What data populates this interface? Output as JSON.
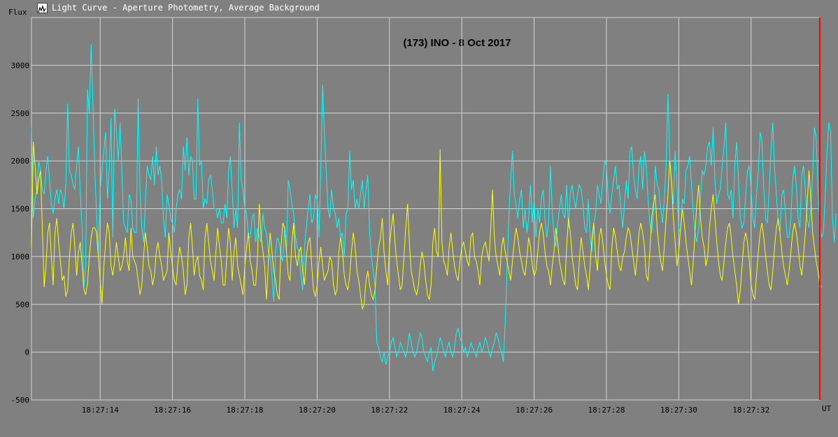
{
  "window": {
    "title": "Light Curve - Aperture Photometry, Average Background",
    "icon": "light-curve-app-icon"
  },
  "chart_data": {
    "type": "line",
    "title": "(173) INO - 8 Oct 2017",
    "ylabel": "Flux",
    "xlabel": "UT",
    "ylim": [
      -500,
      3500
    ],
    "yticks": [
      -500,
      0,
      500,
      1000,
      1500,
      2000,
      2500,
      3000
    ],
    "xlim": [
      "18:27:12.1",
      "18:27:33.9"
    ],
    "xticks": [
      "18:27:14",
      "18:27:16",
      "18:27:18",
      "18:27:20",
      "18:27:22",
      "18:27:24",
      "18:27:26",
      "18:27:28",
      "18:27:30",
      "18:27:32"
    ],
    "grid": true,
    "series": [
      {
        "color": "#00ffff",
        "x_start": "18:27:12.10",
        "x_step_s": 0.05,
        "values": [
          2350,
          1400,
          1600,
          1700,
          2000,
          1900,
          1700,
          1650,
          1900,
          2050,
          1800,
          1550,
          1450,
          1600,
          1700,
          1550,
          1700,
          1650,
          1500,
          1750,
          2600,
          1900,
          1850,
          1750,
          1700,
          1950,
          2150,
          1650,
          1300,
          680,
          900,
          2750,
          2500,
          3220,
          2600,
          1900,
          1450,
          1000,
          1700,
          1900,
          2100,
          2300,
          1600,
          1900,
          2450,
          1200,
          2550,
          2300,
          2000,
          2400,
          1900,
          1350,
          1300,
          1250,
          1650,
          1600,
          1300,
          1250,
          1250,
          2650,
          1700,
          1300,
          1150,
          1550,
          1950,
          1850,
          1800,
          2050,
          1750,
          2150,
          1850,
          1950,
          1800,
          1400,
          1200,
          1650,
          1550,
          1400,
          1350,
          1250,
          1500,
          1650,
          1700,
          1600,
          2150,
          1900,
          2250,
          1850,
          2050,
          2000,
          1600,
          1600,
          2650,
          1950,
          2000,
          1500,
          1600,
          1550,
          1800,
          1850,
          1700,
          1500,
          1500,
          1400,
          1500,
          1350,
          1350,
          1550,
          1400,
          1900,
          2050,
          1700,
          1300,
          1500,
          1300,
          2400,
          1800,
          1700,
          1500,
          1450,
          1200,
          1200,
          1400,
          1450,
          1150,
          1300,
          1200,
          1150,
          1450,
          1300,
          1250,
          1050,
          1000,
          800,
          530,
          1050,
          1200,
          1150,
          1000,
          950,
          1300,
          1050,
          1800,
          1700,
          1550,
          1450,
          1200,
          1100,
          1050,
          800,
          650,
          1100,
          1300,
          1500,
          1650,
          1350,
          1400,
          1650,
          1600,
          1200,
          1900,
          2800,
          2300,
          1900,
          1500,
          1400,
          1700,
          1500,
          1450,
          1300,
          1400,
          1200,
          1250,
          1000,
          1450,
          1500,
          2100,
          1700,
          1800,
          1500,
          1600,
          1500,
          1650,
          1800,
          1500,
          1700,
          1850,
          1250,
          1000,
          850,
          700,
          100,
          50,
          -50,
          -100,
          0,
          -130,
          -50,
          0,
          100,
          150,
          50,
          -50,
          0,
          100,
          50,
          0,
          -50,
          50,
          200,
          100,
          0,
          -50,
          0,
          100,
          200,
          150,
          0,
          -50,
          -100,
          0,
          50,
          -200,
          -100,
          -50,
          50,
          150,
          100,
          0,
          -50,
          50,
          100,
          0,
          -50,
          50,
          200,
          250,
          150,
          100,
          0,
          50,
          -50,
          0,
          100,
          50,
          0,
          -50,
          50,
          100,
          0,
          50,
          150,
          100,
          0,
          -50,
          50,
          100,
          200,
          150,
          50,
          0,
          -100,
          300,
          850,
          1400,
          1800,
          2100,
          1650,
          1550,
          1400,
          1600,
          1700,
          1300,
          1500,
          1250,
          1400,
          1750,
          1350,
          1600,
          1200,
          1500,
          1350,
          1600,
          1700,
          1400,
          1200,
          1350,
          1950,
          1500,
          1200,
          1100,
          1350,
          1500,
          1650,
          1450,
          1400,
          1750,
          1300,
          1650,
          1750,
          1600,
          1500,
          1650,
          1750,
          1700,
          1550,
          1300,
          1250,
          1600,
          1200,
          1050,
          1350,
          1450,
          1750,
          1650,
          1550,
          1800,
          2000,
          1950,
          1600,
          1450,
          1650,
          1800,
          1950,
          1700,
          1750,
          1500,
          1300,
          1550,
          1800,
          1600,
          2100,
          2150,
          1850,
          1700,
          1600,
          1950,
          2050,
          1700,
          2100,
          1950,
          1600,
          1350,
          1250,
          1450,
          1950,
          1750,
          1700,
          1500,
          1350,
          1600,
          1950,
          2700,
          2050,
          1750,
          1550,
          2100,
          1750,
          1250,
          1300,
          1600,
          1550,
          1900,
          1950,
          2050,
          1750,
          1450,
          1250,
          1150,
          1300,
          1600,
          1900,
          1850,
          1950,
          2150,
          2200,
          1950,
          2350,
          1800,
          1550,
          1650,
          1700,
          1950,
          2150,
          2400,
          1650,
          1600,
          1700,
          1400,
          1950,
          2200,
          1800,
          1400,
          1300,
          1350,
          1650,
          1900,
          1950,
          1700,
          1400,
          1300,
          1650,
          1900,
          2300,
          2200,
          1700,
          1400,
          1350,
          1700,
          2100,
          2400,
          1900,
          1650,
          1350,
          1250,
          1650,
          1700,
          1450,
          1200,
          1200,
          1400,
          1800,
          1950,
          1750,
          1400,
          1300,
          1850,
          1950,
          1700,
          1400,
          1300,
          1500,
          1850,
          2350,
          2250,
          1700,
          1350,
          1200,
          1250,
          1650,
          2100,
          2400,
          2300,
          1400,
          1150,
          1450
        ]
      },
      {
        "color": "#ffff00",
        "x_start": "18:27:12.10",
        "x_step_s": 0.05,
        "values": [
          1100,
          2200,
          1950,
          1650,
          1800,
          1900,
          1300,
          680,
          900,
          1250,
          1350,
          1000,
          700,
          1250,
          1400,
          1150,
          950,
          750,
          800,
          580,
          650,
          1000,
          1250,
          1350,
          1100,
          800,
          1050,
          1150,
          900,
          650,
          600,
          720,
          1000,
          1200,
          1300,
          1300,
          1250,
          1000,
          750,
          500,
          900,
          1150,
          1350,
          1250,
          900,
          800,
          950,
          1150,
          1000,
          850,
          900,
          1000,
          1200,
          950,
          850,
          1300,
          1000,
          950,
          900,
          750,
          600,
          700,
          1000,
          1250,
          1100,
          900,
          850,
          700,
          800,
          1050,
          1150,
          1000,
          900,
          750,
          800,
          850,
          1250,
          1050,
          900,
          750,
          700,
          950,
          1100,
          1000,
          850,
          600,
          700,
          1200,
          1350,
          1100,
          800,
          950,
          1000,
          800,
          750,
          650,
          1200,
          1350,
          1150,
          950,
          850,
          750,
          1050,
          1300,
          1100,
          950,
          700,
          700,
          1000,
          1300,
          1150,
          750,
          1050,
          1200,
          900,
          800,
          700,
          600,
          900,
          1100,
          1250,
          950,
          850,
          700,
          700,
          1000,
          1550,
          1200,
          1050,
          900,
          550,
          950,
          1250,
          1050,
          850,
          750,
          600,
          550,
          1100,
          1350,
          1300,
          1050,
          800,
          750,
          1150,
          1350,
          1000,
          900,
          1050,
          1100,
          850,
          700,
          1000,
          1150,
          1200,
          900,
          650,
          580,
          700,
          950,
          1100,
          900,
          750,
          800,
          850,
          1000,
          950,
          700,
          600,
          650,
          1050,
          1200,
          1050,
          800,
          700,
          650,
          800,
          1050,
          1250,
          1100,
          850,
          750,
          600,
          450,
          500,
          750,
          850,
          700,
          600,
          550,
          650,
          900,
          1100,
          1200,
          1400,
          1050,
          850,
          700,
          1100,
          1300,
          1450,
          1150,
          950,
          800,
          650,
          700,
          1000,
          1300,
          1550,
          1150,
          850,
          750,
          650,
          600,
          700,
          900,
          1050,
          950,
          750,
          600,
          550,
          700,
          1150,
          1300,
          1050,
          1000,
          2120,
          1150,
          950,
          900,
          800,
          1100,
          1250,
          1050,
          900,
          800,
          750,
          950,
          1100,
          1150,
          1050,
          950,
          900,
          1200,
          1250,
          1000,
          950,
          850,
          700,
          1000,
          1100,
          1150,
          1050,
          950,
          1300,
          1700,
          1200,
          1000,
          900,
          800,
          1100,
          1200,
          1050,
          950,
          850,
          750,
          950,
          1150,
          1300,
          1200,
          1050,
          950,
          850,
          800,
          1000,
          1200,
          1100,
          900,
          800,
          850,
          1050,
          1250,
          1350,
          1250,
          1050,
          900,
          850,
          700,
          900,
          1050,
          1300,
          1150,
          950,
          850,
          750,
          700,
          1100,
          1400,
          1250,
          1000,
          850,
          700,
          650,
          950,
          1200,
          1050,
          900,
          800,
          650,
          900,
          1200,
          1350,
          1000,
          850,
          1200,
          1300,
          1150,
          950,
          800,
          700,
          650,
          1100,
          1300,
          1200,
          1050,
          900,
          850,
          1000,
          1050,
          1200,
          1300,
          1250,
          1100,
          950,
          800,
          1000,
          1250,
          1350,
          1250,
          1100,
          800,
          750,
          1050,
          1400,
          1550,
          1650,
          1300,
          1100,
          950,
          850,
          1100,
          1400,
          1650,
          2000,
          1800,
          1400,
          1150,
          900,
          1050,
          1300,
          1500,
          1350,
          1150,
          1000,
          850,
          700,
          950,
          1250,
          1550,
          1750,
          1400,
          1200,
          1100,
          900,
          1000,
          1300,
          1500,
          1650,
          1400,
          1150,
          950,
          800,
          750,
          950,
          1150,
          1300,
          1350,
          1200,
          1000,
          850,
          700,
          500,
          650,
          900,
          1150,
          1250,
          1150,
          950,
          700,
          600,
          550,
          800,
          1050,
          1250,
          1350,
          1200,
          1000,
          850,
          700,
          650,
          850,
          1100,
          1300,
          1400,
          1250,
          1050,
          900,
          800,
          700,
          850,
          1050,
          1250,
          1350,
          1250,
          1100,
          900,
          800,
          1000,
          1250,
          1550,
          1900,
          1600,
          1250,
          1100,
          950,
          850,
          700,
          680
        ]
      }
    ],
    "cursor_color": "#ff0000"
  }
}
